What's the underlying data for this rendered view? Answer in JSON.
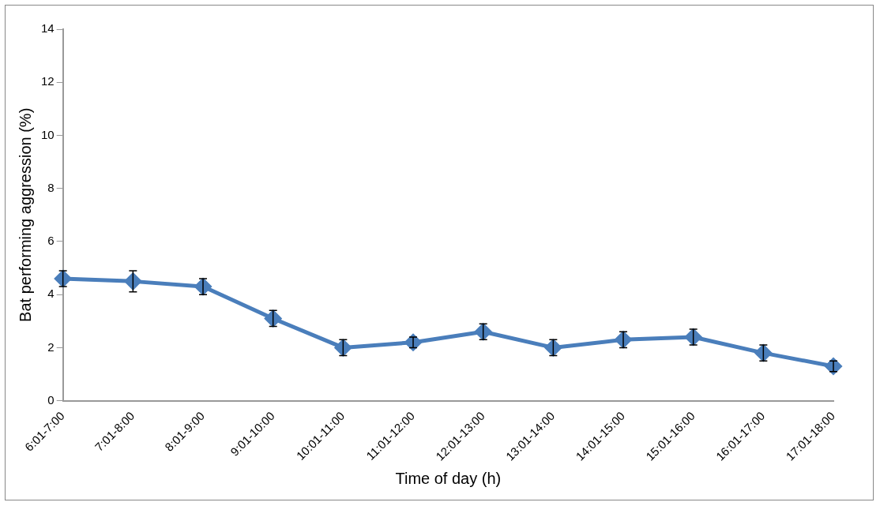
{
  "chart_data": {
    "type": "line",
    "xlabel": "Time of day (h)",
    "ylabel": "Bat performing aggression (%)",
    "categories": [
      "6:01-7:00",
      "7:01-8:00",
      "8:01-9:00",
      "9:01-10:00",
      "10:01-11:00",
      "11:01-12:00",
      "12:01-13:00",
      "13:01-14:00",
      "14:01-15:00",
      "15:01-16:00",
      "16:01-17:00",
      "17:01-18:00"
    ],
    "series": [
      {
        "color": "#4a7ebb",
        "values": [
          4.6,
          4.5,
          4.3,
          3.1,
          2.0,
          2.2,
          2.6,
          2.0,
          2.3,
          2.4,
          1.8,
          1.3
        ],
        "errors": [
          0.3,
          0.4,
          0.3,
          0.3,
          0.3,
          0.2,
          0.3,
          0.3,
          0.3,
          0.3,
          0.3,
          0.2
        ]
      }
    ],
    "ylim": [
      0,
      14
    ],
    "yticks": [
      0,
      2,
      4,
      6,
      8,
      10,
      12,
      14
    ],
    "grid": false,
    "legend": false,
    "marker": "diamond",
    "line_style": "solid"
  }
}
